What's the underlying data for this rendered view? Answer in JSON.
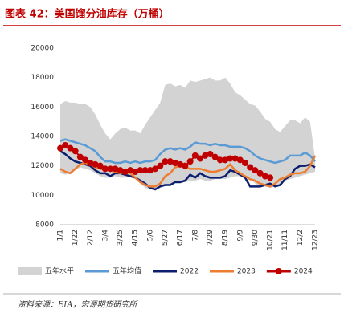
{
  "chart_data": {
    "type": "line",
    "title": "图表 42：美国馏分油库存（万桶）",
    "source": "资料来源：EIA，宏源期货研究所",
    "categories": [
      "1/1",
      null,
      null,
      "1/22",
      null,
      null,
      "2/12",
      null,
      null,
      "3/4",
      null,
      null,
      "3/25",
      null,
      null,
      "4/15",
      null,
      null,
      "5/6",
      null,
      null,
      "5/27",
      null,
      null,
      "6/17",
      null,
      null,
      "7/8",
      null,
      null,
      "7/29",
      null,
      null,
      "8/19",
      null,
      null,
      "9/9",
      null,
      null,
      "9/30",
      null,
      null,
      "10/21",
      null,
      null,
      "11/11",
      null,
      null,
      "12/2",
      null,
      null,
      "12/23"
    ],
    "ylim": [
      8000,
      20000
    ],
    "yticks": [
      8000,
      10000,
      12000,
      14000,
      16000,
      18000,
      20000
    ],
    "grid": false,
    "legend": "bottom",
    "series": [
      {
        "name": "五年水平",
        "color": "#d3d3d3",
        "values": [
          16200,
          16400,
          16300,
          16300,
          16200,
          16200,
          16000,
          15500,
          14800,
          14200,
          13800,
          14200,
          14500,
          14600,
          14400,
          14400,
          14200,
          14800,
          15300,
          15800,
          16300,
          17500,
          17600,
          17400,
          17500,
          17300,
          17800,
          17700,
          17800,
          17900,
          18000,
          17800,
          17800,
          18000,
          17600,
          17000,
          16800,
          16500,
          16200,
          16100,
          15700,
          15200,
          15000,
          14500,
          14300,
          14700,
          15100,
          15100,
          14900,
          15300,
          15000,
          12500
        ],
        "lower": [
          11500,
          11400,
          11500,
          11700,
          11900,
          11800,
          11700,
          11500,
          11300,
          11200,
          11200,
          11300,
          11200,
          11200,
          11300,
          11100,
          10800,
          10500,
          10400,
          10500,
          10700,
          10700,
          10700,
          10800,
          10800,
          10900,
          11000,
          11000,
          11100,
          11000,
          11000,
          11100,
          11100,
          11100,
          11200,
          11300,
          11300,
          11400,
          11100,
          10800,
          10600,
          10600,
          10500,
          10600,
          10800,
          11000,
          11100,
          11200,
          11300,
          11400,
          11500,
          11600
        ]
      },
      {
        "name": "五年均值",
        "color": "#5b9bd5",
        "values": [
          13700,
          13800,
          13700,
          13600,
          13500,
          13400,
          13200,
          13000,
          12600,
          12300,
          12300,
          12200,
          12200,
          12300,
          12200,
          12300,
          12200,
          12300,
          12300,
          12400,
          12800,
          13100,
          13200,
          13100,
          13200,
          13100,
          13300,
          13600,
          13500,
          13500,
          13400,
          13500,
          13400,
          13400,
          13300,
          13300,
          13300,
          13200,
          13000,
          12700,
          12500,
          12400,
          12300,
          12200,
          12300,
          12400,
          12700,
          12700,
          12700,
          12900,
          12700,
          12300
        ]
      },
      {
        "name": "2022",
        "color": "#0c1e6e",
        "values": [
          13000,
          12800,
          12500,
          12300,
          12200,
          12100,
          12000,
          11700,
          11500,
          11500,
          11300,
          11500,
          11500,
          11400,
          11300,
          11200,
          11000,
          10800,
          10500,
          10400,
          10600,
          10700,
          10700,
          10900,
          10900,
          11000,
          11400,
          11200,
          11500,
          11300,
          11200,
          11200,
          11200,
          11300,
          11700,
          11600,
          11400,
          11200,
          10600,
          10600,
          10600,
          10700,
          10800,
          10600,
          10700,
          11100,
          11300,
          11800,
          12000,
          12000,
          12100,
          11900
        ]
      },
      {
        "name": "2023",
        "color": "#ed7d31",
        "values": [
          11800,
          11600,
          11500,
          11800,
          12100,
          12200,
          12100,
          11900,
          11800,
          11700,
          11700,
          11600,
          11500,
          11600,
          11500,
          11200,
          10900,
          10700,
          10600,
          10600,
          10800,
          11300,
          11500,
          11900,
          12000,
          11900,
          11800,
          11800,
          11800,
          11700,
          11600,
          11600,
          11700,
          11800,
          12100,
          11700,
          11500,
          11300,
          11100,
          11000,
          10800,
          10700,
          10600,
          10800,
          11100,
          11200,
          11400,
          11500,
          11500,
          11600,
          12000,
          12700
        ]
      },
      {
        "name": "2024",
        "color": "#c00000",
        "markers": true,
        "values": [
          13200,
          13400,
          13200,
          13000,
          12600,
          12400,
          12200,
          12100,
          12000,
          11800,
          11800,
          11800,
          11700,
          11600,
          11700,
          11600,
          11700,
          11700,
          11700,
          11800,
          12000,
          12300,
          12300,
          12200,
          12100,
          12000,
          12300,
          12700,
          12500,
          12700,
          12800,
          12600,
          12400,
          12400,
          12500,
          12500,
          12400,
          12200,
          11900,
          11700,
          11500,
          11300,
          11200,
          null,
          null,
          null,
          null,
          null,
          null,
          null,
          null,
          null
        ]
      }
    ]
  }
}
